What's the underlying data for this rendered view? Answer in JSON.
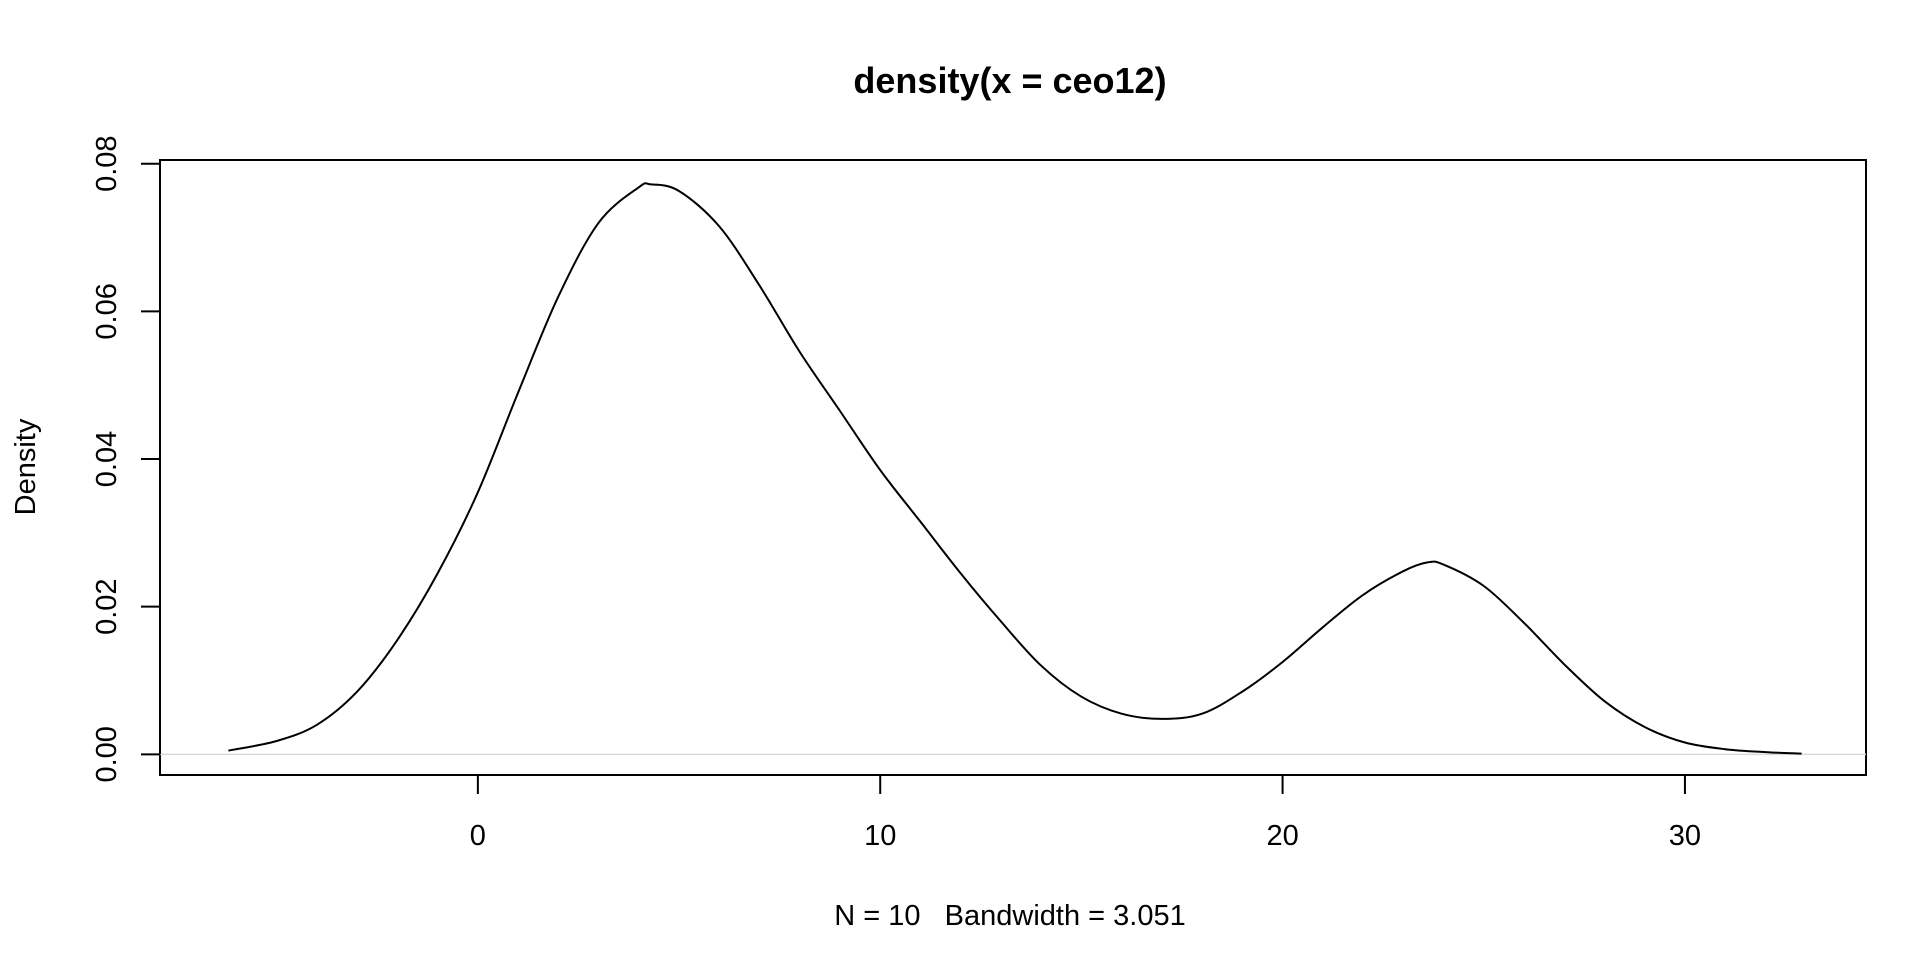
{
  "chart_data": {
    "type": "line",
    "title": "density(x = ceo12)",
    "xlabel": "N = 10   Bandwidth = 3.051",
    "ylabel": "Density",
    "xlim": [
      -7.9,
      34.5
    ],
    "ylim": [
      -0.0028,
      0.0805
    ],
    "x_ticks": [
      0,
      10,
      20,
      30
    ],
    "x_tick_labels": [
      "0",
      "10",
      "20",
      "30"
    ],
    "y_ticks": [
      0,
      0.02,
      0.04,
      0.06,
      0.08
    ],
    "y_tick_labels": [
      "0.00",
      "0.02",
      "0.04",
      "0.06",
      "0.08"
    ],
    "grid": false,
    "zero_baseline": true,
    "colors": {
      "line": "#000000",
      "baseline": "#d9d9d9",
      "frame": "#000000",
      "background": "#ffffff"
    },
    "series": [
      {
        "x": [
          -6.2,
          -5.0,
          -4.0,
          -3.0,
          -2.0,
          -1.0,
          0.0,
          1.0,
          2.0,
          3.0,
          4.0,
          4.3,
          5.0,
          6.0,
          7.0,
          8.0,
          9.0,
          10.0,
          11.0,
          12.0,
          13.0,
          14.0,
          15.0,
          16.0,
          17.0,
          18.0,
          19.0,
          20.0,
          21.0,
          22.0,
          23.0,
          23.6,
          24.0,
          25.0,
          26.0,
          27.0,
          28.0,
          29.0,
          30.0,
          31.0,
          32.0,
          32.9
        ],
        "y": [
          0.0005,
          0.0018,
          0.004,
          0.0085,
          0.0155,
          0.0245,
          0.0355,
          0.049,
          0.062,
          0.072,
          0.0768,
          0.0772,
          0.0763,
          0.0715,
          0.0635,
          0.0545,
          0.0465,
          0.0385,
          0.0315,
          0.0245,
          0.018,
          0.012,
          0.0078,
          0.0055,
          0.0048,
          0.0055,
          0.0085,
          0.0125,
          0.0172,
          0.0216,
          0.0248,
          0.026,
          0.0257,
          0.0228,
          0.0178,
          0.0122,
          0.0072,
          0.0037,
          0.0016,
          0.0007,
          0.0003,
          0.0001
        ]
      }
    ]
  }
}
